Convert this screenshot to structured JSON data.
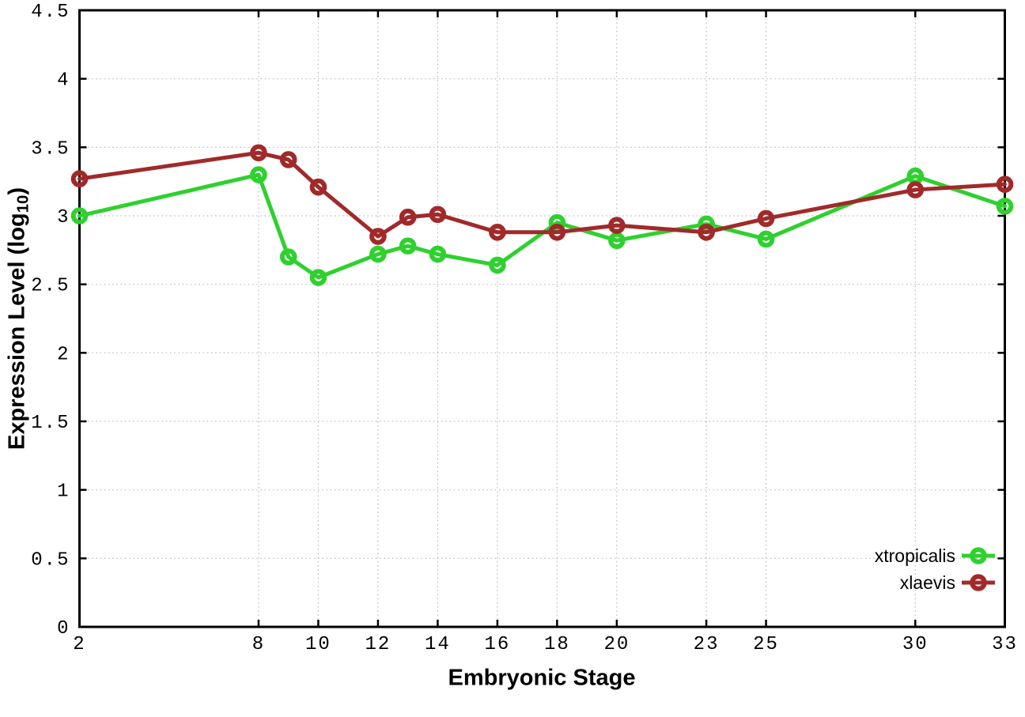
{
  "chart_data": {
    "type": "line",
    "title": "",
    "xlabel": "Embryonic Stage",
    "ylabel": {
      "prefix": "Expression Level (log",
      "sub": "10",
      "suffix": ")"
    },
    "xlim": [
      2,
      33
    ],
    "ylim": [
      0,
      4.5
    ],
    "grid": true,
    "legend_position": "inside bottom-right",
    "xticks": [
      2,
      8,
      10,
      12,
      14,
      16,
      18,
      20,
      23,
      25,
      30,
      33
    ],
    "xtick_labels": [
      "2",
      "8",
      "10",
      "12",
      "14",
      "16",
      "18",
      "20",
      "23",
      "25",
      "30",
      "33"
    ],
    "yticks": [
      0,
      0.5,
      1,
      1.5,
      2,
      2.5,
      3,
      3.5,
      4,
      4.5
    ],
    "ytick_labels": [
      "0",
      "0.5",
      "1",
      "1.5",
      "2",
      "2.5",
      "3",
      "3.5",
      "4",
      "4.5"
    ],
    "series": [
      {
        "name": "xtropicalis",
        "color": "#2fd02f",
        "marker": "open-circle",
        "points": [
          [
            2,
            3.0
          ],
          [
            8,
            3.3
          ],
          [
            9,
            2.7
          ],
          [
            10,
            2.55
          ],
          [
            12,
            2.72
          ],
          [
            13,
            2.78
          ],
          [
            14,
            2.72
          ],
          [
            16,
            2.64
          ],
          [
            18,
            2.95
          ],
          [
            20,
            2.82
          ],
          [
            23,
            2.94
          ],
          [
            25,
            2.83
          ],
          [
            30,
            3.29
          ],
          [
            33,
            3.07
          ]
        ]
      },
      {
        "name": "xlaevis",
        "color": "#a02a2a",
        "marker": "open-circle",
        "points": [
          [
            2,
            3.27
          ],
          [
            8,
            3.46
          ],
          [
            9,
            3.41
          ],
          [
            10,
            3.21
          ],
          [
            12,
            2.85
          ],
          [
            13,
            2.99
          ],
          [
            14,
            3.01
          ],
          [
            16,
            2.88
          ],
          [
            18,
            2.88
          ],
          [
            20,
            2.93
          ],
          [
            23,
            2.88
          ],
          [
            25,
            2.98
          ],
          [
            30,
            3.19
          ],
          [
            33,
            3.23
          ]
        ]
      }
    ],
    "style": {
      "border_color": "#000000",
      "grid_color": "#bbbbbb",
      "tick_color": "#000000",
      "text_color": "#000000",
      "background": "#ffffff"
    }
  }
}
